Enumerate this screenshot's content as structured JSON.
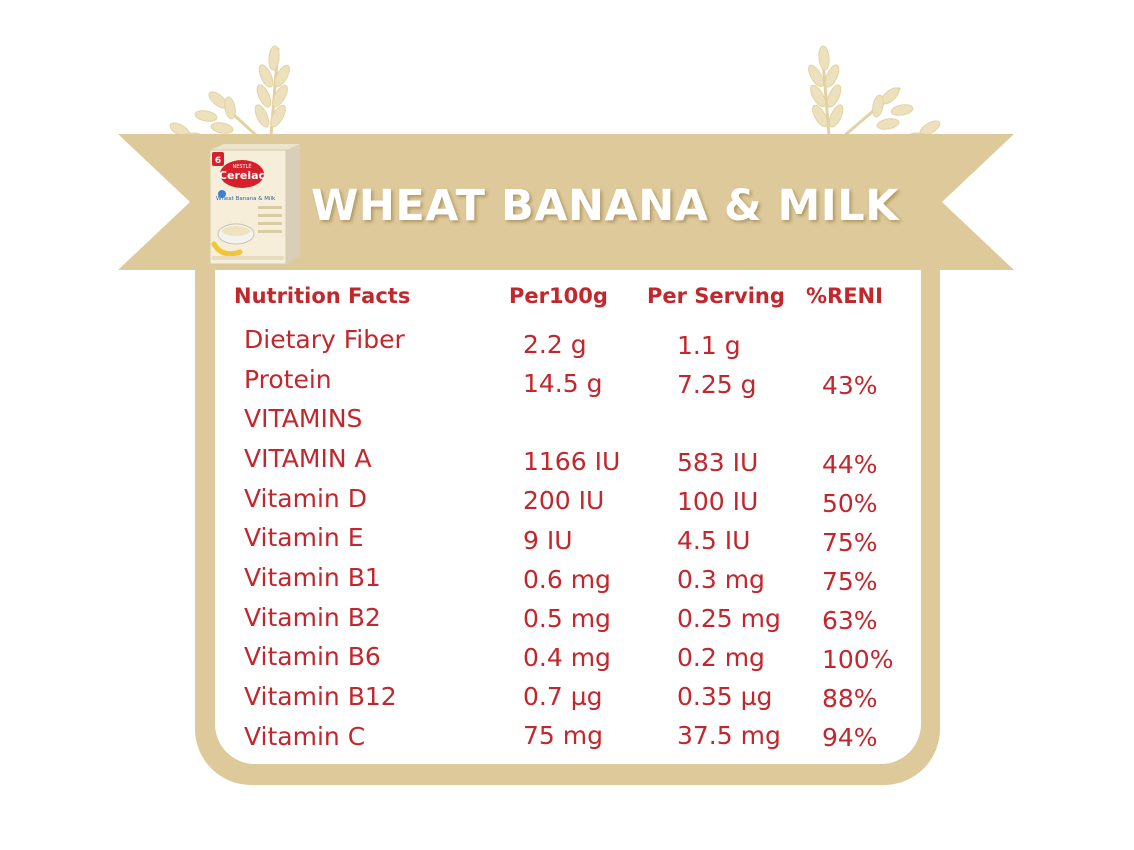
{
  "title": "WHEAT BANANA & MILK",
  "colors": {
    "accent_red": "#c1272d",
    "ribbon_tan": "#ddc99a",
    "wheat": "#e9d9ad"
  },
  "product_box": {
    "brand_top": "NESTLÉ",
    "brand": "Cerelac",
    "flavor": "Wheat Banana & Milk",
    "age_badge": "6"
  },
  "table": {
    "headers": [
      "Nutrition Facts",
      "Per100g",
      "Per Serving",
      "%RENI"
    ],
    "rows": [
      {
        "name": "Dietary Fiber",
        "per100": "2.2 g",
        "serving": "1.1 g",
        "reni": ""
      },
      {
        "name": "Protein",
        "per100": "14.5 g",
        "serving": "7.25 g",
        "reni": "43%"
      },
      {
        "name": "VITAMINS",
        "per100": "",
        "serving": "",
        "reni": ""
      },
      {
        "name": "VITAMIN A",
        "per100": "1166 IU",
        "serving": "583 IU",
        "reni": "44%"
      },
      {
        "name": "Vitamin D",
        "per100": "200 IU",
        "serving": "100 IU",
        "reni": "50%"
      },
      {
        "name": "Vitamin E",
        "per100": "9 IU",
        "serving": "4.5 IU",
        "reni": "75%"
      },
      {
        "name": "Vitamin B1",
        "per100": "0.6 mg",
        "serving": "0.3 mg",
        "reni": "75%"
      },
      {
        "name": "Vitamin B2",
        "per100": "0.5 mg",
        "serving": "0.25 mg",
        "reni": "63%"
      },
      {
        "name": "Vitamin B6",
        "per100": "0.4 mg",
        "serving": "0.2 mg",
        "reni": "100%"
      },
      {
        "name": "Vitamin B12",
        "per100": "0.7 µg",
        "serving": "0.35 µg",
        "reni": "88%"
      },
      {
        "name": "Vitamin C",
        "per100": "75 mg",
        "serving": "37.5 mg",
        "reni": "94%"
      }
    ]
  }
}
